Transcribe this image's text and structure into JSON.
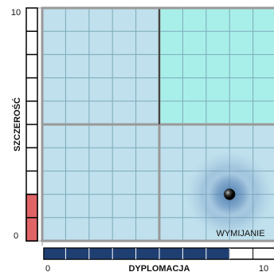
{
  "chart_data": {
    "type": "scatter",
    "ylabel": "SZCZEROŚĆ",
    "xlabel": "DYPLOMACJA",
    "x": [
      8
    ],
    "values": [
      2
    ],
    "annotation": "WYMIJANIE",
    "xlim": [
      0,
      10
    ],
    "ylim": [
      0,
      10
    ],
    "xticks": [
      0,
      10
    ],
    "yticks": [
      0,
      10
    ],
    "y_bar_color": "#e06466",
    "x_bar_color": "#1f3f73",
    "point_color": "#222"
  }
}
